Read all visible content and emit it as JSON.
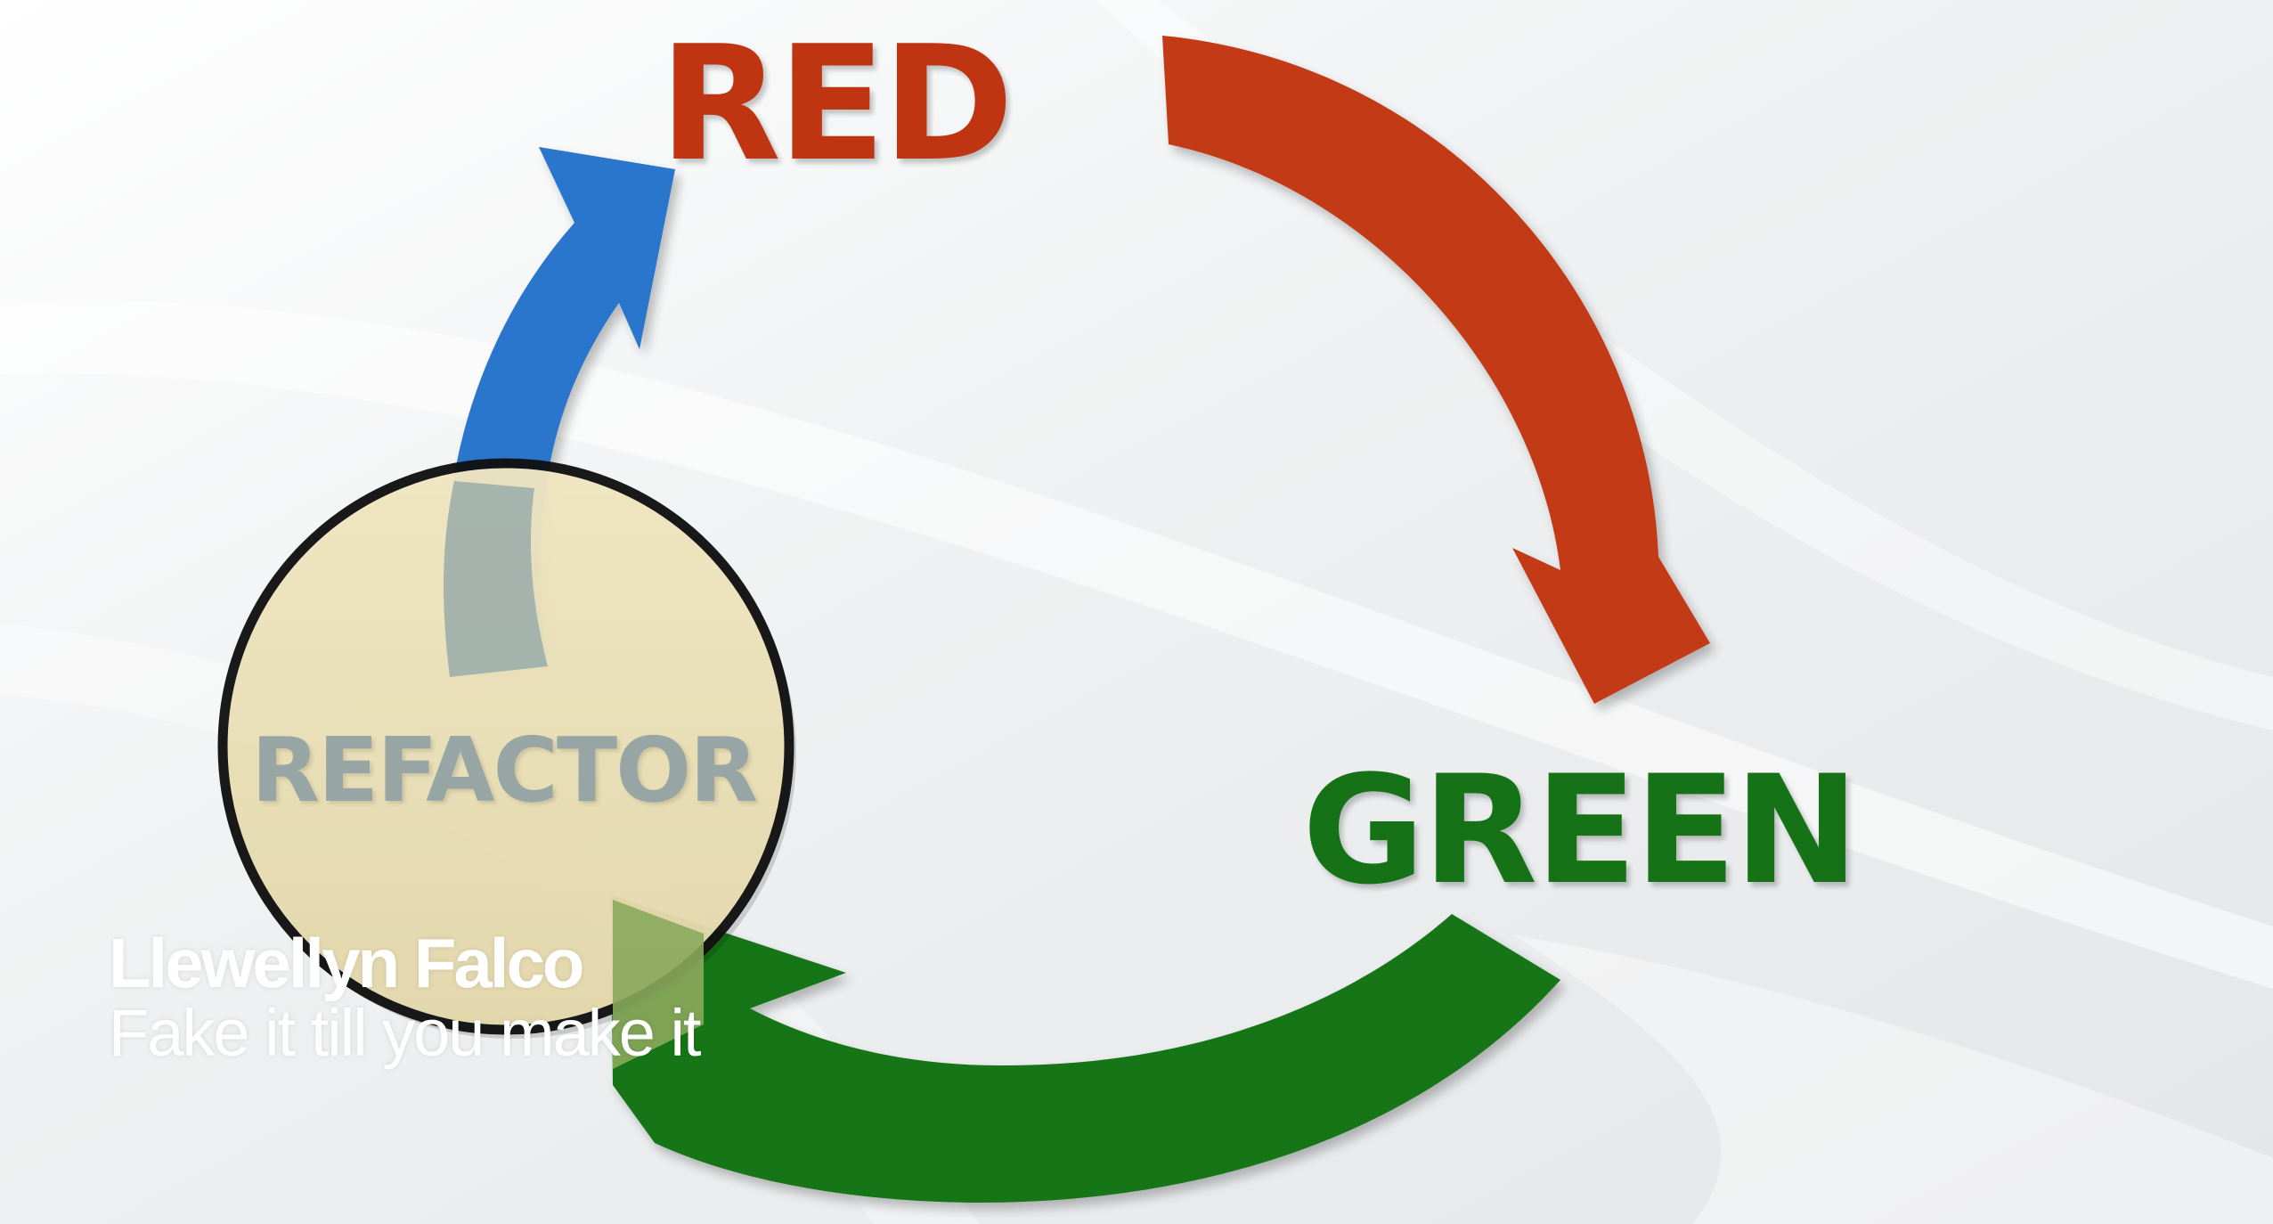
{
  "diagram": {
    "red": {
      "text": "RED",
      "color": "#bf3511"
    },
    "green": {
      "text": "GREEN",
      "color": "#157216"
    },
    "refactor": {
      "text": "REFACTOR",
      "color": "#97a5a5",
      "circle_fill": "#ece0b4"
    },
    "arrow_colors": {
      "red_to_green": "#c23a12",
      "green_to_refactor": "#147414",
      "refactor_to_red": "#2b76cc"
    },
    "background": "#f1f2f3"
  },
  "lower_third": {
    "speaker": "Llewellyn Falco",
    "title": "Fake it till you make it"
  }
}
